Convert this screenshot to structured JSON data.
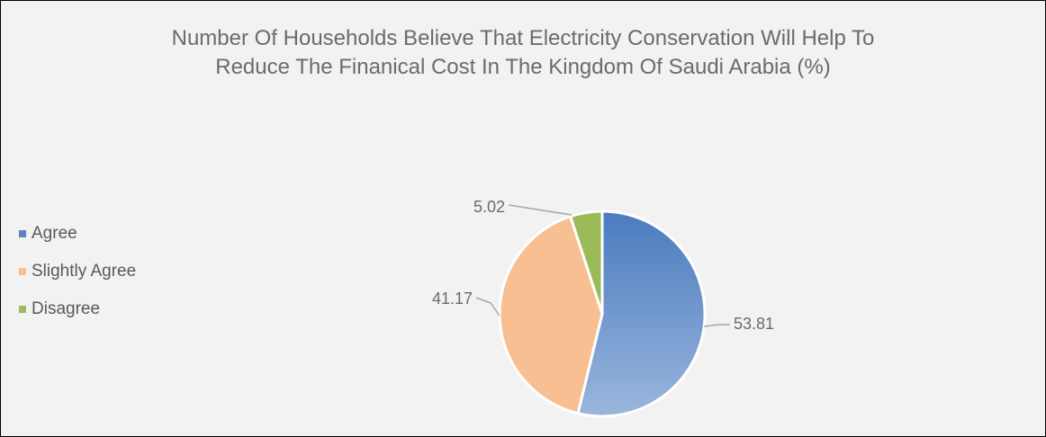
{
  "chart_data": {
    "type": "pie",
    "title_lines": [
      "Number Of Households Believe That Electricity Conservation Will Help To",
      "Reduce The Finanical Cost In The Kingdom Of Saudi Arabia (%)"
    ],
    "categories": [
      "Agree",
      "Slightly Agree",
      "Disagree"
    ],
    "values": [
      53.81,
      41.17,
      5.02
    ],
    "value_labels": [
      "53.81",
      "41.17",
      "5.02"
    ],
    "colors": [
      "#5a86c4",
      "#f7bf92",
      "#9bbb59"
    ],
    "legend_position": "left"
  }
}
